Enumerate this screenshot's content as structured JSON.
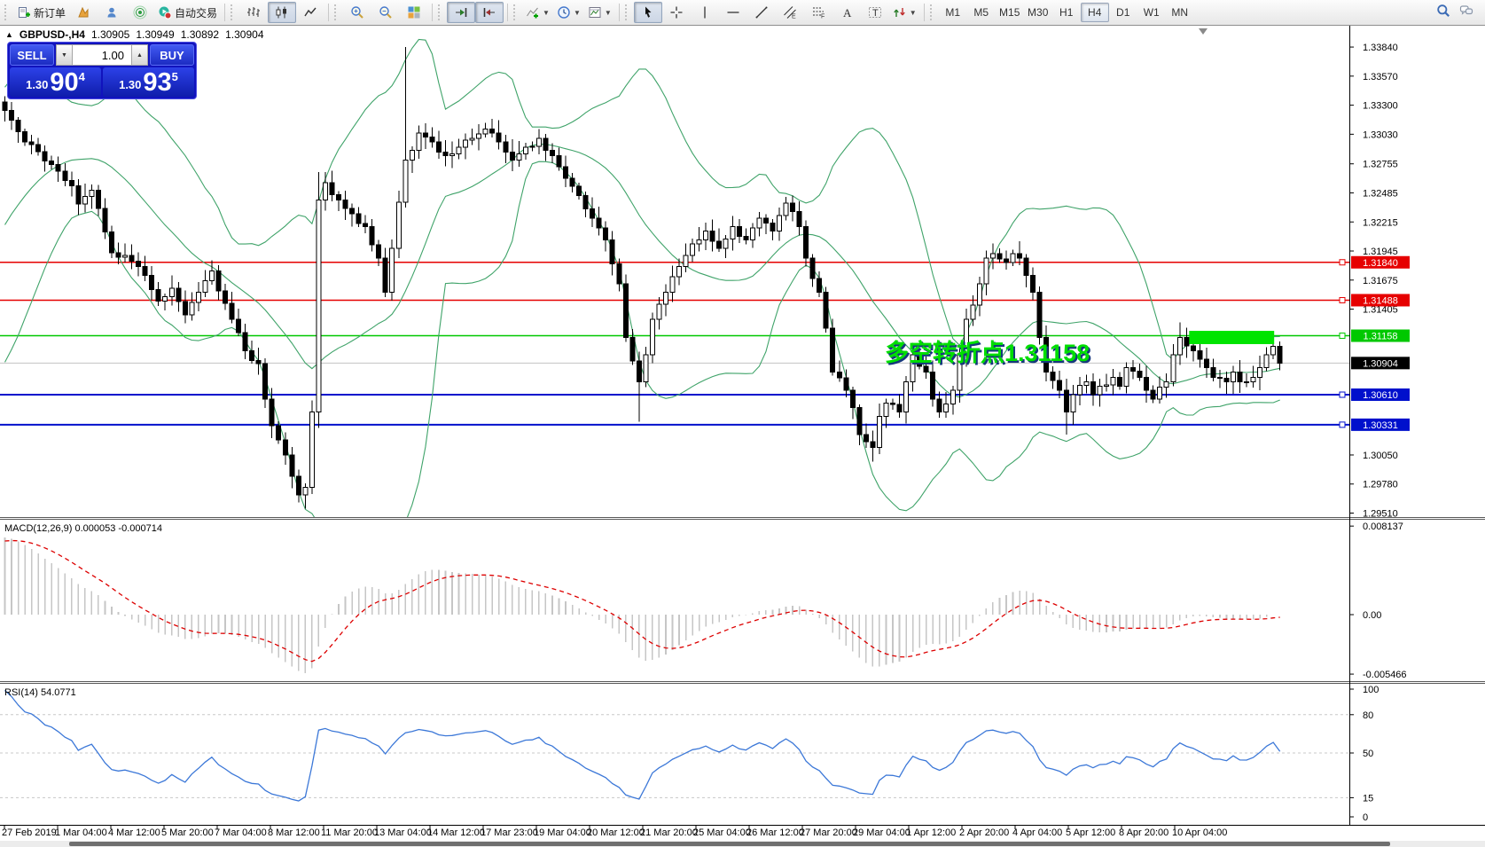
{
  "toolbar": {
    "groups": [
      {
        "name": "standard",
        "items": [
          {
            "name": "new-order-button",
            "icon": "new-order",
            "label": "新订单"
          },
          {
            "name": "market-watch-button",
            "icon": "market-watch"
          },
          {
            "name": "navigator-button",
            "icon": "navigator"
          },
          {
            "name": "signals-button",
            "icon": "signals"
          },
          {
            "name": "autotrading-button",
            "icon": "autotrading",
            "label": "自动交易"
          }
        ]
      },
      {
        "name": "chart-type",
        "items": [
          {
            "name": "bar-chart-button",
            "icon": "bar-chart"
          },
          {
            "name": "candlestick-button",
            "icon": "candles",
            "active": true
          },
          {
            "name": "line-chart-button",
            "icon": "line-chart"
          }
        ]
      },
      {
        "name": "zoom",
        "items": [
          {
            "name": "zoom-in-button",
            "icon": "zoom-in"
          },
          {
            "name": "zoom-out-button",
            "icon": "zoom-out"
          },
          {
            "name": "tile-windows-button",
            "icon": "tile"
          }
        ]
      },
      {
        "name": "scroll",
        "items": [
          {
            "name": "auto-scroll-button",
            "icon": "autoscroll",
            "active": true
          },
          {
            "name": "chart-shift-button",
            "icon": "chartshift",
            "active": true
          }
        ]
      },
      {
        "name": "insert",
        "items": [
          {
            "name": "indicators-button",
            "icon": "indicators",
            "dropdown": true
          },
          {
            "name": "periods-button",
            "icon": "clock",
            "dropdown": true
          },
          {
            "name": "templates-button",
            "icon": "template",
            "dropdown": true
          }
        ]
      },
      {
        "name": "drawing",
        "items": [
          {
            "name": "cursor-button",
            "icon": "cursor",
            "active": true
          },
          {
            "name": "crosshair-button",
            "icon": "crosshair"
          },
          {
            "name": "vertical-line-button",
            "icon": "vline"
          },
          {
            "name": "horizontal-line-button",
            "icon": "hline"
          },
          {
            "name": "trendline-button",
            "icon": "trendline"
          },
          {
            "name": "equidistant-channel-button",
            "icon": "channel"
          },
          {
            "name": "fibonacci-button",
            "icon": "fibonacci"
          },
          {
            "name": "text-button",
            "icon": "text"
          },
          {
            "name": "text-label-button",
            "icon": "text-label"
          },
          {
            "name": "arrows-button",
            "icon": "arrows",
            "dropdown": true
          }
        ]
      }
    ],
    "timeframes": [
      {
        "label": "M1"
      },
      {
        "label": "M5"
      },
      {
        "label": "M15"
      },
      {
        "label": "M30"
      },
      {
        "label": "H1"
      },
      {
        "label": "H4",
        "active": true
      },
      {
        "label": "D1"
      },
      {
        "label": "W1"
      },
      {
        "label": "MN"
      }
    ],
    "right_icons": [
      {
        "name": "search-icon",
        "icon": "search"
      },
      {
        "name": "chat-icon",
        "icon": "chat"
      }
    ]
  },
  "symbol_header": {
    "collapse": "▲",
    "title": "GBPUSD-,H4",
    "open": "1.30905",
    "high": "1.30949",
    "low": "1.30892",
    "close": "1.30904"
  },
  "trade_panel": {
    "sell_label": "SELL",
    "buy_label": "BUY",
    "volume": "1.00",
    "vol_down": "▼",
    "vol_up": "▲",
    "sell_small": "1.30",
    "sell_big": "90",
    "sell_sup": "4",
    "buy_small": "1.30",
    "buy_big": "93",
    "buy_sup": "5"
  },
  "annotation": {
    "text": "多空转折点1.31158",
    "color": "#00DE00"
  },
  "indicators": {
    "macd_label": "MACD(12,26,9)",
    "macd_values": "0.000053 -0.000714",
    "rsi_label": "RSI(14)",
    "rsi_value": "54.0771"
  },
  "chart_data": {
    "type": "candlestick",
    "symbol": "GBPUSD-",
    "timeframe": "H4",
    "last_quote": {
      "open": 1.30905,
      "high": 1.30949,
      "low": 1.30892,
      "close": 1.30904,
      "bid": 1.30904,
      "ask": 1.30935
    },
    "ylim": [
      1.29473,
      1.3403
    ],
    "price_axis_ticks": [
      1.3384,
      1.3357,
      1.333,
      1.3303,
      1.32755,
      1.32485,
      1.32215,
      1.31945,
      1.31675,
      1.31405,
      1.3005,
      1.2978,
      1.2951
    ],
    "level_lines": [
      {
        "price": 1.3184,
        "color": "#E60000",
        "width": 1.5,
        "role": "resistance"
      },
      {
        "price": 1.31488,
        "color": "#E60000",
        "width": 1.5,
        "role": "resistance"
      },
      {
        "price": 1.31158,
        "color": "#00C800",
        "width": 1.5,
        "role": "pivot"
      },
      {
        "price": 1.30904,
        "color": "#C2C2C2",
        "width": 1,
        "role": "current-price",
        "label_bg": "#000000"
      },
      {
        "price": 1.3061,
        "color": "#0010CC",
        "width": 2,
        "role": "support"
      },
      {
        "price": 1.30331,
        "color": "#0010CC",
        "width": 2,
        "role": "support"
      }
    ],
    "green_box": {
      "bar_start": 177,
      "bar_end": 190,
      "price_top": 1.31203,
      "price_bottom": 1.3108,
      "color": "#00E400"
    },
    "time_axis_labels": [
      "27 Feb 2019",
      "1 Mar 04:00",
      "4 Mar 12:00",
      "5 Mar 20:00",
      "7 Mar 04:00",
      "8 Mar 12:00",
      "11 Mar 20:00",
      "13 Mar 04:00",
      "14 Mar 12:00",
      "17 Mar 23:00",
      "19 Mar 04:00",
      "20 Mar 12:00",
      "21 Mar 20:00",
      "25 Mar 04:00",
      "26 Mar 12:00",
      "27 Mar 20:00",
      "29 Mar 04:00",
      "1 Apr 12:00",
      "2 Apr 20:00",
      "4 Apr 04:00",
      "5 Apr 12:00",
      "8 Apr 20:00",
      "10 Apr 04:00"
    ],
    "bars_total": 192,
    "close_waypoints": [
      [
        0,
        1.3325
      ],
      [
        3,
        1.3296
      ],
      [
        7,
        1.3275
      ],
      [
        10,
        1.3255
      ],
      [
        11,
        1.3238
      ],
      [
        13,
        1.3251
      ],
      [
        16,
        1.3193
      ],
      [
        19,
        1.3185
      ],
      [
        21,
        1.3172
      ],
      [
        23,
        1.3148
      ],
      [
        25,
        1.316
      ],
      [
        27,
        1.3135
      ],
      [
        29,
        1.3156
      ],
      [
        31,
        1.3176
      ],
      [
        34,
        1.3131
      ],
      [
        36,
        1.3102
      ],
      [
        38,
        1.309
      ],
      [
        39,
        1.3057
      ],
      [
        40,
        1.3032
      ],
      [
        42,
        1.3005
      ],
      [
        43,
        1.2985
      ],
      [
        44,
        1.2968
      ],
      [
        45,
        1.2975
      ],
      [
        46,
        1.3045
      ],
      [
        47,
        1.3242
      ],
      [
        48,
        1.3258
      ],
      [
        50,
        1.3242
      ],
      [
        52,
        1.3229
      ],
      [
        54,
        1.3217
      ],
      [
        56,
        1.3188
      ],
      [
        57,
        1.3156
      ],
      [
        58,
        1.3197
      ],
      [
        60,
        1.3279
      ],
      [
        61,
        1.3288
      ],
      [
        62,
        1.3304
      ],
      [
        64,
        1.3296
      ],
      [
        66,
        1.3283
      ],
      [
        68,
        1.3291
      ],
      [
        70,
        1.3299
      ],
      [
        72,
        1.3308
      ],
      [
        74,
        1.3296
      ],
      [
        76,
        1.3279
      ],
      [
        78,
        1.3291
      ],
      [
        80,
        1.3299
      ],
      [
        82,
        1.3283
      ],
      [
        84,
        1.3262
      ],
      [
        86,
        1.3246
      ],
      [
        88,
        1.3225
      ],
      [
        90,
        1.3205
      ],
      [
        92,
        1.3164
      ],
      [
        93,
        1.3114
      ],
      [
        95,
        1.3073
      ],
      [
        96,
        1.3098
      ],
      [
        97,
        1.3131
      ],
      [
        99,
        1.3156
      ],
      [
        101,
        1.318
      ],
      [
        103,
        1.3201
      ],
      [
        105,
        1.3213
      ],
      [
        107,
        1.3197
      ],
      [
        109,
        1.3217
      ],
      [
        111,
        1.3205
      ],
      [
        113,
        1.3225
      ],
      [
        115,
        1.3213
      ],
      [
        117,
        1.3239
      ],
      [
        119,
        1.3217
      ],
      [
        120,
        1.3188
      ],
      [
        122,
        1.3156
      ],
      [
        123,
        1.3123
      ],
      [
        124,
        1.3082
      ],
      [
        126,
        1.3065
      ],
      [
        127,
        1.3049
      ],
      [
        128,
        1.3024
      ],
      [
        130,
        1.3012
      ],
      [
        131,
        1.3041
      ],
      [
        132,
        1.3053
      ],
      [
        134,
        1.3045
      ],
      [
        135,
        1.3073
      ],
      [
        136,
        1.3098
      ],
      [
        138,
        1.3082
      ],
      [
        139,
        1.3057
      ],
      [
        140,
        1.3045
      ],
      [
        142,
        1.3065
      ],
      [
        143,
        1.3098
      ],
      [
        144,
        1.3131
      ],
      [
        146,
        1.3164
      ],
      [
        147,
        1.3188
      ],
      [
        148,
        1.3192
      ],
      [
        150,
        1.3184
      ],
      [
        151,
        1.3192
      ],
      [
        152,
        1.3188
      ],
      [
        154,
        1.3156
      ],
      [
        155,
        1.3114
      ],
      [
        156,
        1.3082
      ],
      [
        158,
        1.3065
      ],
      [
        159,
        1.3045
      ],
      [
        160,
        1.3061
      ],
      [
        162,
        1.3073
      ],
      [
        163,
        1.3061
      ],
      [
        164,
        1.3069
      ],
      [
        166,
        1.3077
      ],
      [
        167,
        1.3069
      ],
      [
        168,
        1.3086
      ],
      [
        170,
        1.3077
      ],
      [
        171,
        1.3065
      ],
      [
        172,
        1.3057
      ],
      [
        174,
        1.3073
      ],
      [
        175,
        1.3098
      ],
      [
        176,
        1.3114
      ],
      [
        178,
        1.3102
      ],
      [
        179,
        1.3094
      ],
      [
        180,
        1.3086
      ],
      [
        181,
        1.3077
      ],
      [
        183,
        1.3073
      ],
      [
        184,
        1.3082
      ],
      [
        185,
        1.3073
      ],
      [
        187,
        1.3077
      ],
      [
        188,
        1.3086
      ],
      [
        189,
        1.3098
      ],
      [
        190,
        1.3106
      ],
      [
        191,
        1.30904
      ]
    ],
    "wick_overrides": {
      "45": {
        "low": 1.2955
      },
      "47": {
        "high": 1.3268,
        "low": 1.303
      },
      "60": {
        "high": 1.3384
      },
      "95": {
        "low": 1.3036
      },
      "130": {
        "low": 1.2999
      },
      "159": {
        "low": 1.3024
      },
      "176": {
        "high": 1.3128
      }
    },
    "bollinger": {
      "period": 20,
      "deviation": 2,
      "color": "#3FA369"
    },
    "macd": {
      "fast": 12,
      "slow": 26,
      "signal": 9,
      "current_macd": 5.3e-05,
      "current_signal": -0.000714,
      "axis_ticks": [
        {
          "label": "0.008137",
          "value": 0.008137
        },
        {
          "label": "0.00",
          "value": 0
        },
        {
          "label": "-0.005466",
          "value": -0.005466
        }
      ],
      "histogram_color": "#C6C6C6",
      "signal_color": "#DD0000"
    },
    "rsi": {
      "period": 14,
      "current": 54.0771,
      "axis_ticks": [
        100,
        80,
        50,
        15,
        0
      ],
      "dashed_levels": [
        80,
        50,
        15
      ],
      "color": "#3C78D8"
    },
    "candle_up_fill": "#FFFFFF",
    "candle_down_fill": "#000000",
    "candle_stroke": "#000000"
  }
}
